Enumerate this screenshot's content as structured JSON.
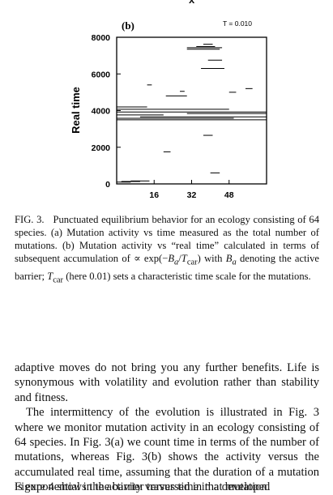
{
  "header": {
    "x_label_top": "x"
  },
  "chart_data": {
    "type": "scatter",
    "panel_label": "(b)",
    "annotation": "T = 0.010",
    "xlabel": "",
    "ylabel": "Real time",
    "xlim": [
      0,
      64
    ],
    "ylim": [
      0,
      8000
    ],
    "x_ticks": [
      16,
      32,
      48
    ],
    "y_ticks": [
      0,
      2000,
      4000,
      6000,
      8000
    ],
    "segments": [
      {
        "x0": 0,
        "x1": 6,
        "y": 100
      },
      {
        "x0": 2,
        "x1": 10,
        "y": 130
      },
      {
        "x0": 6,
        "x1": 14,
        "y": 160
      },
      {
        "x0": 40,
        "x1": 44,
        "y": 600
      },
      {
        "x0": 20,
        "x1": 23,
        "y": 1750
      },
      {
        "x0": 37,
        "x1": 41,
        "y": 2650
      },
      {
        "x0": 0,
        "x1": 64,
        "y": 3500
      },
      {
        "x0": 0,
        "x1": 50,
        "y": 3580
      },
      {
        "x0": 10,
        "x1": 64,
        "y": 3660
      },
      {
        "x0": 0,
        "x1": 20,
        "y": 3760
      },
      {
        "x0": 30,
        "x1": 64,
        "y": 3840
      },
      {
        "x0": 0,
        "x1": 64,
        "y": 3920
      },
      {
        "x0": 0,
        "x1": 48,
        "y": 4070
      },
      {
        "x0": 0,
        "x1": 13,
        "y": 4200
      },
      {
        "x0": 21,
        "x1": 30,
        "y": 4800
      },
      {
        "x0": 48,
        "x1": 51,
        "y": 5000
      },
      {
        "x0": 27,
        "x1": 29,
        "y": 5050
      },
      {
        "x0": 55,
        "x1": 58,
        "y": 5200
      },
      {
        "x0": 13,
        "x1": 15,
        "y": 5400
      },
      {
        "x0": 36,
        "x1": 46,
        "y": 6300
      },
      {
        "x0": 39,
        "x1": 45,
        "y": 6750
      },
      {
        "x0": 30,
        "x1": 44,
        "y": 7350
      },
      {
        "x0": 30,
        "x1": 45,
        "y": 7430
      },
      {
        "x0": 34,
        "x1": 42,
        "y": 7490
      },
      {
        "x0": 37,
        "x1": 41,
        "y": 7620
      }
    ]
  },
  "caption": {
    "text": "FIG. 3.   Punctuated equilibrium behavior for an ecology consisting of 64 species. (a) Mutation activity vs time measured as the total number of mutations. (b) Mutation activity vs “real time” calculated in terms of subsequent accumulation of ∝ exp(−B_a/T_car) with B_a denoting the active barrier; T_car (here 0.01) sets a characteristic time scale for the mutations."
  },
  "body": {
    "p1": "adaptive moves do not bring you any further benefits. Life is synonymous with volatility and evolution rather than stability and fitness.",
    "p2": "The intermittency of the evolution is illustrated in Fig. 3 where we monitor mutation activity in an ecology consisting of 64 species. In Fig. 3(a) we count time in terms of the number of mutations, whereas Fig. 3(b) shows the activity versus the accumulated real time, assuming that the duration of a mutation is exponential in the barrier traversed in that mutation.",
    "p3_partial": "Figure 4 shows the activity versus time in a developed"
  }
}
